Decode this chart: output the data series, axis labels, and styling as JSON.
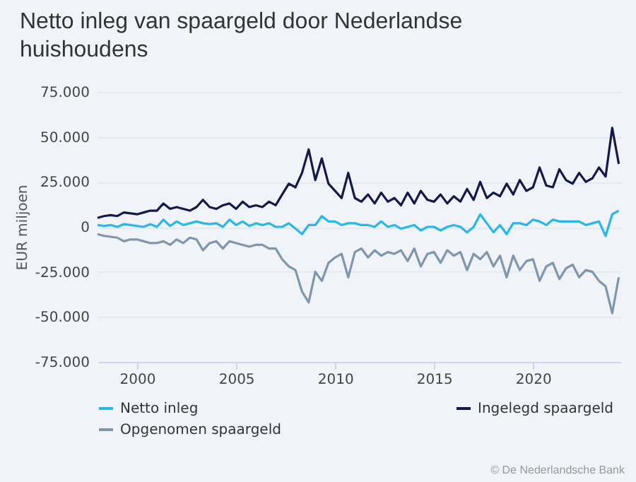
{
  "chart_data": {
    "type": "line",
    "title": "Netto inleg van spaargeld door Nederlandse huishoudens",
    "ylabel": "EUR miljoen",
    "x": [
      "1998-01",
      "1998-05",
      "1998-09",
      "1999-01",
      "1999-05",
      "1999-09",
      "2000-01",
      "2000-05",
      "2000-09",
      "2001-01",
      "2001-05",
      "2001-09",
      "2002-01",
      "2002-05",
      "2002-09",
      "2003-01",
      "2003-05",
      "2003-09",
      "2004-01",
      "2004-05",
      "2004-09",
      "2005-01",
      "2005-05",
      "2005-09",
      "2006-01",
      "2006-05",
      "2006-09",
      "2007-01",
      "2007-05",
      "2007-09",
      "2008-01",
      "2008-05",
      "2008-09",
      "2009-01",
      "2009-05",
      "2009-09",
      "2010-01",
      "2010-05",
      "2010-09",
      "2011-01",
      "2011-05",
      "2011-09",
      "2012-01",
      "2012-05",
      "2012-09",
      "2013-01",
      "2013-05",
      "2013-09",
      "2014-01",
      "2014-05",
      "2014-09",
      "2015-01",
      "2015-05",
      "2015-09",
      "2016-01",
      "2016-05",
      "2016-09",
      "2017-01",
      "2017-05",
      "2017-09",
      "2018-01",
      "2018-05",
      "2018-09",
      "2019-01",
      "2019-05",
      "2019-09",
      "2020-01",
      "2020-05",
      "2020-09",
      "2021-01",
      "2021-05",
      "2021-09",
      "2022-01",
      "2022-05",
      "2022-09",
      "2023-01",
      "2023-05",
      "2023-09",
      "2024-01",
      "2024-05"
    ],
    "series": [
      {
        "name": "Netto inleg",
        "color": "#29b6e8",
        "values": [
          1000,
          500,
          1000,
          0,
          1500,
          1000,
          500,
          0,
          1500,
          0,
          4000,
          500,
          3000,
          1000,
          2000,
          3000,
          2000,
          1500,
          2000,
          0,
          4000,
          1000,
          3000,
          500,
          2000,
          1000,
          2000,
          0,
          0,
          2000,
          -1000,
          -4000,
          1000,
          1000,
          6000,
          3000,
          3000,
          1000,
          2000,
          2000,
          1000,
          1000,
          0,
          3000,
          0,
          1000,
          -1000,
          0,
          1000,
          -2000,
          0,
          0,
          -2000,
          0,
          1000,
          0,
          -3000,
          0,
          7000,
          2000,
          -3000,
          1000,
          -4000,
          2000,
          2000,
          1000,
          4000,
          3000,
          1000,
          4000,
          3000,
          3000,
          3000,
          3000,
          1000,
          2000,
          3000,
          -5000,
          7000,
          9000
        ]
      },
      {
        "name": "Ingelegd spaargeld",
        "color": "#14194a",
        "values": [
          5000,
          6000,
          6500,
          6000,
          8000,
          7500,
          7000,
          8000,
          9000,
          9000,
          13000,
          10000,
          11000,
          10000,
          9000,
          11000,
          15000,
          11000,
          10000,
          12000,
          13000,
          10000,
          14000,
          11000,
          12000,
          11000,
          14000,
          12000,
          18000,
          24000,
          22000,
          30000,
          43000,
          26000,
          38000,
          24000,
          20000,
          16000,
          30000,
          16000,
          14000,
          18000,
          13000,
          19000,
          14000,
          16000,
          12000,
          19000,
          13000,
          20000,
          15000,
          14000,
          18000,
          13000,
          17000,
          14000,
          21000,
          15000,
          25000,
          16000,
          19000,
          17000,
          24000,
          18000,
          26000,
          20000,
          22000,
          33000,
          23000,
          22000,
          32000,
          26000,
          24000,
          30000,
          25000,
          27000,
          33000,
          28000,
          55000,
          35000
        ]
      },
      {
        "name": "Opgenomen spaargeld",
        "color": "#7f96ad",
        "values": [
          -4000,
          -5000,
          -5500,
          -6000,
          -8000,
          -7000,
          -7000,
          -8000,
          -9000,
          -9000,
          -8000,
          -10000,
          -7000,
          -9000,
          -6000,
          -7000,
          -13000,
          -9000,
          -8000,
          -12000,
          -8000,
          -9000,
          -10000,
          -11000,
          -10000,
          -10000,
          -12000,
          -12000,
          -18000,
          -22000,
          -24000,
          -36000,
          -42000,
          -25000,
          -30000,
          -20000,
          -17000,
          -15000,
          -28000,
          -14000,
          -12000,
          -17000,
          -13000,
          -16000,
          -14000,
          -15000,
          -13000,
          -19000,
          -12000,
          -22000,
          -15000,
          -14000,
          -20000,
          -13000,
          -16000,
          -14000,
          -24000,
          -15000,
          -18000,
          -14000,
          -22000,
          -16000,
          -28000,
          -16000,
          -24000,
          -19000,
          -18000,
          -30000,
          -22000,
          -20000,
          -29000,
          -23000,
          -21000,
          -28000,
          -24000,
          -25000,
          -30000,
          -33000,
          -48000,
          -28000
        ]
      }
    ],
    "xlim": [
      "1998-01",
      "2024-06"
    ],
    "xticks": [
      "2000",
      "2005",
      "2010",
      "2015",
      "2020"
    ],
    "ylim": [
      -75000,
      75000
    ],
    "yticks": [
      {
        "value": -75000,
        "label": "-75.000"
      },
      {
        "value": -50000,
        "label": "-50.000"
      },
      {
        "value": -25000,
        "label": "-25.000"
      },
      {
        "value": 0,
        "label": "0"
      },
      {
        "value": 25000,
        "label": "25.000"
      },
      {
        "value": 50000,
        "label": "50.000"
      },
      {
        "value": 75000,
        "label": "75.000"
      }
    ],
    "grid": "y",
    "legend": "bottom",
    "line_style": "solid",
    "marker": "none",
    "annotations": [
      "© De Nederlandsche Bank"
    ]
  }
}
